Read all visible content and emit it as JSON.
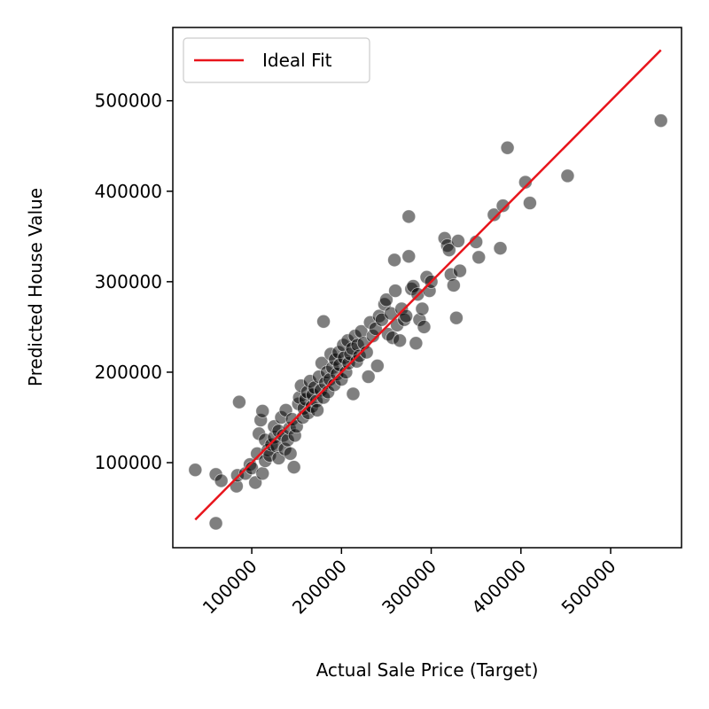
{
  "chart_data": {
    "type": "scatter",
    "xlabel": "Actual Sale Price (Target)",
    "ylabel": "Predicted House Value",
    "xlim": [
      12000,
      579000
    ],
    "ylim": [
      6000,
      581000
    ],
    "xticks": [
      100000,
      200000,
      300000,
      400000,
      500000
    ],
    "yticks": [
      100000,
      200000,
      300000,
      400000,
      500000
    ],
    "grid": false,
    "legend": {
      "position": "top-left",
      "entries": [
        {
          "label": "Ideal Fit",
          "color": "#e8141b"
        }
      ]
    },
    "ideal_line": {
      "name": "Ideal Fit",
      "color": "#e8141b",
      "x": [
        37000,
        556000
      ],
      "y": [
        37000,
        556000
      ]
    },
    "point_color": "#000000",
    "point_opacity": 0.5,
    "points": [
      [
        37000,
        92000
      ],
      [
        60000,
        33000
      ],
      [
        60000,
        87000
      ],
      [
        66000,
        80000
      ],
      [
        83000,
        74000
      ],
      [
        84000,
        86000
      ],
      [
        86000,
        167000
      ],
      [
        93000,
        88000
      ],
      [
        98000,
        98000
      ],
      [
        100000,
        94000
      ],
      [
        104000,
        78000
      ],
      [
        106000,
        110000
      ],
      [
        108000,
        132000
      ],
      [
        110000,
        147000
      ],
      [
        112000,
        157000
      ],
      [
        112000,
        88000
      ],
      [
        115000,
        102000
      ],
      [
        115000,
        125000
      ],
      [
        118000,
        114000
      ],
      [
        120000,
        108000
      ],
      [
        122000,
        120000
      ],
      [
        125000,
        128000
      ],
      [
        125000,
        140000
      ],
      [
        128000,
        118000
      ],
      [
        130000,
        105000
      ],
      [
        130000,
        135000
      ],
      [
        133000,
        150000
      ],
      [
        135000,
        130000
      ],
      [
        137000,
        115000
      ],
      [
        138000,
        158000
      ],
      [
        140000,
        125000
      ],
      [
        142000,
        138000
      ],
      [
        143000,
        110000
      ],
      [
        145000,
        148000
      ],
      [
        147000,
        95000
      ],
      [
        148000,
        130000
      ],
      [
        150000,
        140000
      ],
      [
        152000,
        165000
      ],
      [
        153000,
        172000
      ],
      [
        155000,
        185000
      ],
      [
        157000,
        150000
      ],
      [
        158000,
        160000
      ],
      [
        160000,
        170000
      ],
      [
        162000,
        178000
      ],
      [
        163000,
        155000
      ],
      [
        165000,
        190000
      ],
      [
        167000,
        162000
      ],
      [
        168000,
        175000
      ],
      [
        170000,
        183000
      ],
      [
        172000,
        168000
      ],
      [
        173000,
        158000
      ],
      [
        175000,
        195000
      ],
      [
        177000,
        180000
      ],
      [
        178000,
        210000
      ],
      [
        180000,
        256000
      ],
      [
        180000,
        172000
      ],
      [
        182000,
        188000
      ],
      [
        184000,
        200000
      ],
      [
        185000,
        178000
      ],
      [
        187000,
        192000
      ],
      [
        188000,
        220000
      ],
      [
        190000,
        205000
      ],
      [
        192000,
        186000
      ],
      [
        193000,
        214000
      ],
      [
        195000,
        198000
      ],
      [
        197000,
        222000
      ],
      [
        198000,
        208000
      ],
      [
        200000,
        192000
      ],
      [
        202000,
        230000
      ],
      [
        203000,
        216000
      ],
      [
        205000,
        200000
      ],
      [
        207000,
        235000
      ],
      [
        208000,
        210000
      ],
      [
        210000,
        220000
      ],
      [
        212000,
        226000
      ],
      [
        213000,
        176000
      ],
      [
        215000,
        240000
      ],
      [
        217000,
        212000
      ],
      [
        218000,
        230000
      ],
      [
        220000,
        218000
      ],
      [
        222000,
        245000
      ],
      [
        225000,
        232000
      ],
      [
        228000,
        222000
      ],
      [
        230000,
        195000
      ],
      [
        232000,
        255000
      ],
      [
        235000,
        240000
      ],
      [
        238000,
        248000
      ],
      [
        240000,
        207000
      ],
      [
        242000,
        262000
      ],
      [
        245000,
        258000
      ],
      [
        248000,
        275000
      ],
      [
        250000,
        280000
      ],
      [
        252000,
        242000
      ],
      [
        255000,
        265000
      ],
      [
        257000,
        238000
      ],
      [
        259000,
        324000
      ],
      [
        260000,
        290000
      ],
      [
        262000,
        252000
      ],
      [
        265000,
        235000
      ],
      [
        267000,
        270000
      ],
      [
        270000,
        258000
      ],
      [
        272000,
        262000
      ],
      [
        275000,
        372000
      ],
      [
        275000,
        328000
      ],
      [
        278000,
        292000
      ],
      [
        280000,
        295000
      ],
      [
        283000,
        232000
      ],
      [
        285000,
        286000
      ],
      [
        287000,
        258000
      ],
      [
        290000,
        270000
      ],
      [
        292000,
        250000
      ],
      [
        295000,
        305000
      ],
      [
        298000,
        290000
      ],
      [
        300000,
        300000
      ],
      [
        315000,
        348000
      ],
      [
        318000,
        340000
      ],
      [
        320000,
        335000
      ],
      [
        322000,
        308000
      ],
      [
        325000,
        296000
      ],
      [
        328000,
        260000
      ],
      [
        330000,
        345000
      ],
      [
        332000,
        312000
      ],
      [
        350000,
        344000
      ],
      [
        353000,
        327000
      ],
      [
        370000,
        374000
      ],
      [
        377000,
        337000
      ],
      [
        380000,
        384000
      ],
      [
        385000,
        448000
      ],
      [
        405000,
        410000
      ],
      [
        410000,
        387000
      ],
      [
        452000,
        417000
      ],
      [
        556000,
        478000
      ]
    ]
  }
}
